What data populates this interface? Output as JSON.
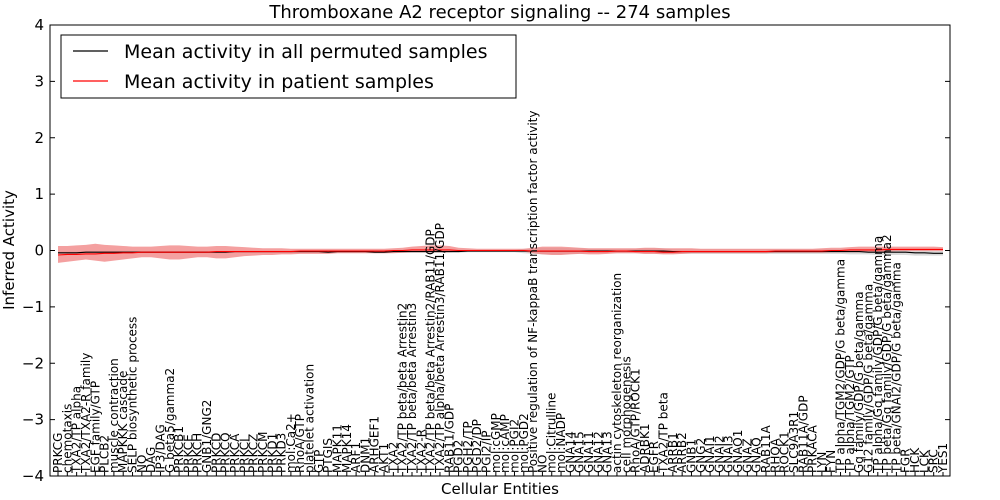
{
  "chart_data": {
    "type": "line",
    "title": "Thromboxane A2 receptor signaling -- 274 samples",
    "xlabel": "Cellular Entities",
    "ylabel": "Inferred Activity",
    "ylim": [
      -4,
      4
    ],
    "yticks": [
      -4,
      -3,
      -2,
      -1,
      0,
      1,
      2,
      3,
      4
    ],
    "legend_position": "top-left",
    "colors": {
      "permuted": "#000000",
      "patient": "#ff0000",
      "patient_band": "#f08080",
      "permuted_band": "#bbbbbb"
    },
    "categories": [
      "PRKCG",
      "chemotaxis",
      "TXA2/TP alpha",
      "TXA2/TXA2-R family",
      "EGF family/GTP",
      "PLCB2",
      "muscle contraction",
      "MAPKKK cascade",
      "SELP biosynthetic process",
      "NO",
      "DAG",
      "IP3/DAG",
      "G beta5/gamma2",
      "PRKCB1",
      "PRKCE",
      "PRKCH",
      "GNB1/GNG2",
      "PRKCD",
      "PRKCQ",
      "PRKCA",
      "PRKCI",
      "PRKCZ",
      "PRKCM",
      "PRKD1",
      "PRKD3",
      "mol:Ca2+",
      "RhoA/GTP",
      "platelet activation",
      "GTP",
      "PTGIS",
      "MAPK11",
      "MAPK14",
      "ARF1",
      "DNM1",
      "ARHGEF1",
      "AKT1",
      "TXA2",
      "TXA2/TP beta/beta Arrestin2",
      "TXA2/TP beta/beta Arrestin3",
      "TXA2-R",
      "TXA2/TP beta/beta Arrestin2/RAB11/GDP",
      "TXA2/TP alpha/beta Arrestin3/RAB11/GDP",
      "RAB11/GDP",
      "PGD2",
      "PGH2/TP",
      "PGD2/DP",
      "PGI2/IP",
      "mol:cGMP",
      "mol:cAMP",
      "mol:PGI2",
      "mol:PGD2",
      "Positive regulation of NF-kappaB transcription factor activity",
      "NO",
      "mol:Citrulline",
      "mol:NADP",
      "GNA14",
      "GNA15",
      "GNA11",
      "GNA12",
      "GNA13",
      "actin cytoskeleton reorganization",
      "cell morphogenesis",
      "RhoA/GTP/ROCK1",
      "ADRBK1",
      "EGFR",
      "TXA2/TP beta",
      "ARRB1",
      "ARRB2",
      "GNB1",
      "GNG2",
      "GNAI1",
      "GNAI2",
      "GNAI3",
      "GNAO1",
      "GNAZ",
      "GNAQ",
      "RAB11A",
      "RHOA",
      "ROCK1",
      "SLC9A3R1",
      "RAB11A/GDP",
      "PRKACA",
      "LYN",
      "FYN",
      "TP alpha/TGM2/GDP/G beta/gamma",
      "TP alpha/TGM2/GTP",
      "Gq family/GDP/G beta/gamma",
      "G12 family/GDP/G beta/gamma",
      "TP alpha/Gq family/GDP/G beta/gamma",
      "TP beta/Gq family/GDP/G beta/gamma2",
      "TP beta/GNAI2/GDP/G beta/gamma",
      "FGR",
      "HCK",
      "LCK",
      "SRC",
      "YES1"
    ],
    "series": [
      {
        "name": "Mean activity in all permuted samples",
        "values": [
          -0.04,
          -0.04,
          -0.04,
          -0.03,
          -0.03,
          -0.03,
          -0.03,
          -0.03,
          -0.03,
          -0.03,
          -0.03,
          -0.03,
          -0.03,
          -0.03,
          -0.03,
          -0.03,
          -0.03,
          -0.03,
          -0.03,
          -0.02,
          -0.02,
          -0.02,
          -0.02,
          -0.02,
          -0.02,
          -0.02,
          -0.02,
          -0.02,
          -0.02,
          -0.03,
          -0.02,
          -0.02,
          -0.02,
          -0.02,
          -0.03,
          -0.03,
          -0.02,
          -0.02,
          -0.02,
          -0.02,
          -0.02,
          -0.02,
          -0.02,
          -0.02,
          -0.01,
          -0.01,
          -0.01,
          -0.01,
          -0.01,
          -0.01,
          -0.01,
          -0.01,
          -0.01,
          -0.01,
          -0.01,
          -0.01,
          -0.01,
          -0.01,
          -0.01,
          -0.01,
          -0.01,
          -0.01,
          -0.01,
          -0.01,
          -0.01,
          -0.01,
          -0.02,
          -0.02,
          -0.02,
          -0.02,
          -0.02,
          -0.02,
          -0.02,
          -0.02,
          -0.02,
          -0.02,
          -0.02,
          -0.02,
          -0.02,
          -0.02,
          -0.02,
          -0.02,
          -0.02,
          -0.02,
          -0.02,
          -0.02,
          -0.02,
          -0.03,
          -0.03,
          -0.03,
          -0.03,
          -0.03,
          -0.04,
          -0.04,
          -0.05,
          -0.05
        ]
      },
      {
        "name": "Mean activity in patient samples",
        "values": [
          -0.08,
          -0.07,
          -0.07,
          -0.06,
          -0.06,
          -0.05,
          -0.05,
          -0.04,
          -0.04,
          -0.03,
          -0.03,
          -0.03,
          -0.03,
          -0.03,
          -0.03,
          -0.03,
          -0.03,
          -0.02,
          -0.02,
          -0.02,
          -0.02,
          -0.02,
          -0.02,
          -0.02,
          -0.02,
          -0.02,
          -0.01,
          -0.01,
          -0.01,
          -0.01,
          -0.01,
          -0.01,
          -0.01,
          -0.01,
          -0.01,
          -0.01,
          0.0,
          0.0,
          0.01,
          0.01,
          0.01,
          0.01,
          0.01,
          0.0,
          0.0,
          0.0,
          0.0,
          0.0,
          0.0,
          0.0,
          0.0,
          -0.01,
          -0.01,
          -0.01,
          -0.01,
          -0.01,
          -0.01,
          -0.02,
          -0.02,
          -0.02,
          -0.01,
          -0.01,
          -0.02,
          -0.02,
          -0.02,
          -0.03,
          -0.03,
          -0.02,
          -0.02,
          -0.02,
          -0.02,
          -0.02,
          -0.02,
          -0.02,
          -0.02,
          -0.02,
          -0.02,
          -0.01,
          -0.01,
          -0.01,
          -0.01,
          -0.01,
          -0.01,
          0.0,
          0.0,
          0.01,
          0.01,
          0.01,
          0.01,
          0.02,
          0.02,
          0.02,
          0.02,
          0.02,
          0.02,
          0.02
        ]
      }
    ],
    "bands": {
      "patient_lower": [
        -0.22,
        -0.2,
        -0.18,
        -0.16,
        -0.18,
        -0.2,
        -0.18,
        -0.16,
        -0.14,
        -0.12,
        -0.12,
        -0.14,
        -0.16,
        -0.16,
        -0.14,
        -0.12,
        -0.12,
        -0.14,
        -0.14,
        -0.12,
        -0.1,
        -0.09,
        -0.08,
        -0.08,
        -0.07,
        -0.07,
        -0.06,
        -0.06,
        -0.06,
        -0.06,
        -0.05,
        -0.05,
        -0.05,
        -0.05,
        -0.05,
        -0.05,
        -0.05,
        -0.04,
        -0.03,
        -0.03,
        -0.03,
        -0.03,
        -0.03,
        -0.02,
        -0.02,
        -0.02,
        -0.02,
        -0.02,
        -0.02,
        -0.02,
        -0.02,
        -0.05,
        -0.07,
        -0.08,
        -0.08,
        -0.07,
        -0.06,
        -0.07,
        -0.07,
        -0.06,
        -0.05,
        -0.05,
        -0.05,
        -0.06,
        -0.06,
        -0.07,
        -0.07,
        -0.06,
        -0.05,
        -0.05,
        -0.05,
        -0.05,
        -0.05,
        -0.05,
        -0.05,
        -0.05,
        -0.05,
        -0.04,
        -0.04,
        -0.04,
        -0.04,
        -0.04,
        -0.04,
        -0.03,
        -0.03,
        -0.03,
        -0.03,
        -0.02,
        -0.02,
        -0.02,
        -0.01,
        -0.01,
        -0.01,
        -0.01,
        -0.01,
        -0.01
      ],
      "patient_upper": [
        0.08,
        0.08,
        0.09,
        0.1,
        0.12,
        0.1,
        0.09,
        0.08,
        0.07,
        0.07,
        0.07,
        0.08,
        0.09,
        0.09,
        0.08,
        0.07,
        0.07,
        0.08,
        0.08,
        0.07,
        0.06,
        0.05,
        0.04,
        0.04,
        0.04,
        0.03,
        0.03,
        0.03,
        0.03,
        0.03,
        0.03,
        0.03,
        0.03,
        0.03,
        0.03,
        0.03,
        0.04,
        0.05,
        0.07,
        0.08,
        0.09,
        0.09,
        0.08,
        0.05,
        0.04,
        0.03,
        0.03,
        0.03,
        0.03,
        0.03,
        0.03,
        0.05,
        0.07,
        0.07,
        0.07,
        0.06,
        0.05,
        0.04,
        0.04,
        0.04,
        0.04,
        0.04,
        0.04,
        0.05,
        0.05,
        0.04,
        0.04,
        0.04,
        0.04,
        0.03,
        0.03,
        0.03,
        0.03,
        0.03,
        0.03,
        0.03,
        0.03,
        0.03,
        0.03,
        0.03,
        0.03,
        0.03,
        0.04,
        0.05,
        0.05,
        0.06,
        0.07,
        0.07,
        0.07,
        0.07,
        0.07,
        0.07,
        0.07,
        0.07,
        0.07,
        0.06
      ],
      "permuted_lower": [
        -0.06,
        -0.06,
        -0.06,
        -0.05,
        -0.05,
        -0.05,
        -0.05,
        -0.05,
        -0.05,
        -0.05,
        -0.05,
        -0.05,
        -0.05,
        -0.05,
        -0.05,
        -0.05,
        -0.05,
        -0.05,
        -0.05,
        -0.04,
        -0.04,
        -0.04,
        -0.04,
        -0.04,
        -0.04,
        -0.04,
        -0.04,
        -0.04,
        -0.04,
        -0.05,
        -0.04,
        -0.04,
        -0.04,
        -0.04,
        -0.05,
        -0.05,
        -0.04,
        -0.04,
        -0.04,
        -0.04,
        -0.04,
        -0.04,
        -0.04,
        -0.04,
        -0.03,
        -0.03,
        -0.03,
        -0.03,
        -0.03,
        -0.03,
        -0.05,
        -0.06,
        -0.07,
        -0.07,
        -0.07,
        -0.06,
        -0.06,
        -0.05,
        -0.05,
        -0.05,
        -0.05,
        -0.05,
        -0.05,
        -0.06,
        -0.06,
        -0.06,
        -0.06,
        -0.06,
        -0.06,
        -0.06,
        -0.06,
        -0.06,
        -0.06,
        -0.06,
        -0.06,
        -0.06,
        -0.06,
        -0.06,
        -0.06,
        -0.06,
        -0.06,
        -0.06,
        -0.06,
        -0.06,
        -0.06,
        -0.07,
        -0.07,
        -0.07,
        -0.08,
        -0.08,
        -0.08,
        -0.08,
        -0.09,
        -0.09,
        -0.09,
        -0.09
      ],
      "permuted_upper": [
        -0.02,
        -0.02,
        -0.02,
        -0.01,
        -0.01,
        -0.01,
        -0.01,
        -0.01,
        -0.01,
        -0.01,
        -0.01,
        -0.01,
        -0.01,
        -0.01,
        -0.01,
        -0.01,
        -0.01,
        -0.01,
        -0.01,
        0.0,
        0.0,
        0.0,
        0.0,
        0.0,
        0.0,
        0.0,
        0.0,
        0.0,
        0.0,
        -0.01,
        0.0,
        0.0,
        0.0,
        0.0,
        -0.01,
        -0.01,
        0.0,
        0.0,
        0.0,
        0.0,
        0.0,
        0.0,
        0.0,
        0.0,
        0.01,
        0.01,
        0.01,
        0.01,
        0.01,
        0.01,
        0.03,
        0.04,
        0.05,
        0.05,
        0.05,
        0.04,
        0.04,
        0.03,
        0.03,
        0.03,
        0.03,
        0.03,
        0.03,
        0.04,
        0.04,
        0.04,
        0.02,
        0.02,
        0.02,
        0.02,
        0.02,
        0.02,
        0.02,
        0.02,
        0.02,
        0.02,
        0.02,
        0.02,
        0.02,
        0.02,
        0.02,
        0.02,
        0.02,
        0.02,
        0.02,
        0.02,
        0.02,
        0.01,
        0.01,
        0.01,
        0.01,
        0.01,
        0.0,
        0.0,
        -0.01,
        -0.01
      ]
    }
  }
}
